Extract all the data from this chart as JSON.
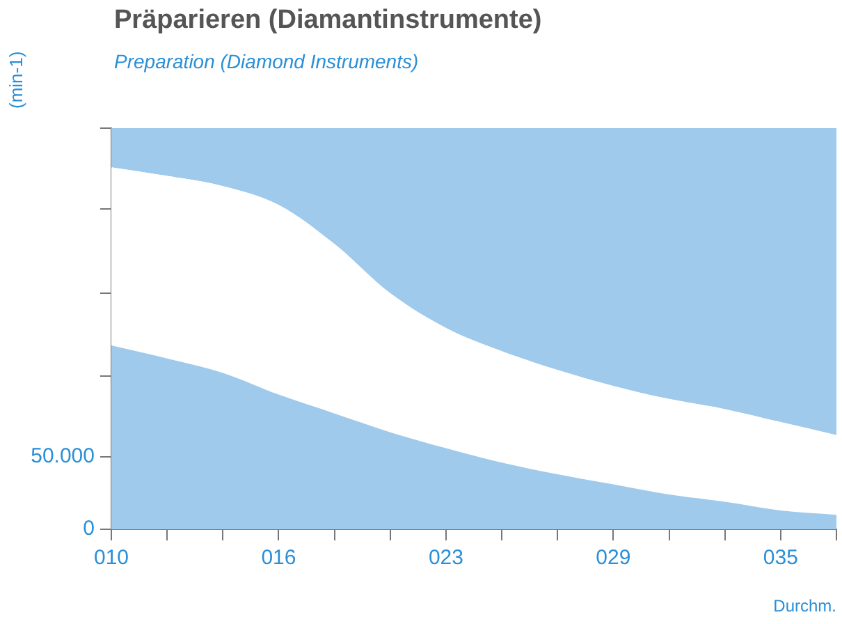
{
  "chart_data": {
    "type": "area",
    "title": "Präparieren (Diamantinstrumente)",
    "subtitle": "Preparation (Diamond Instruments)",
    "ylabel": "(min-1)",
    "xlabel": "Durchm.",
    "categories": [
      "010",
      null,
      null,
      "016",
      null,
      null,
      "023",
      null,
      null,
      "029",
      null,
      null,
      "035",
      null
    ],
    "stacked": true,
    "marker": "none",
    "legend": false,
    "grid": false,
    "ylim": [
      0,
      277000
    ],
    "yticks": [
      0,
      {
        "value": 50000,
        "label": "50.000"
      },
      {
        "value": 106000,
        "label": null
      },
      {
        "value": 163000,
        "label": null
      },
      {
        "value": 221000,
        "label": null
      },
      {
        "value": 277000,
        "label": null
      }
    ],
    "series": [
      {
        "color": "#9fcaeb",
        "values": [
          127000,
          118000,
          108000,
          93000,
          80000,
          67000,
          56000,
          46000,
          38000,
          31000,
          24000,
          19000,
          13000,
          10000
        ]
      },
      {
        "color": "#ffffff",
        "values": [
          123000,
          126000,
          129000,
          131000,
          117000,
          96000,
          83000,
          77000,
          72000,
          68000,
          66000,
          64000,
          61000,
          55000
        ]
      },
      {
        "color": "#9fcaeb",
        "values": [
          27000,
          33000,
          40000,
          53000,
          80000,
          114000,
          138000,
          154000,
          167000,
          178000,
          187000,
          194000,
          203000,
          212000
        ]
      }
    ]
  }
}
